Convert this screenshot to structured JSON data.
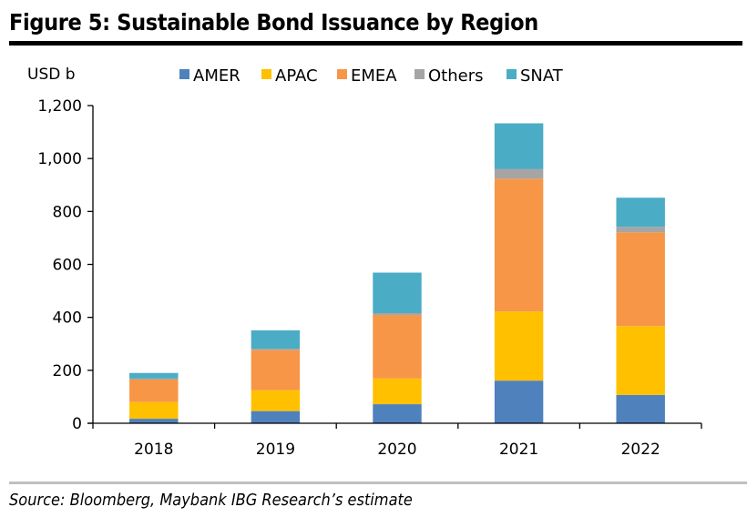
{
  "figure": {
    "title": "Figure 5: Sustainable Bond Issuance by Region",
    "source": "Source: Bloomberg, Maybank IBG Research’s estimate"
  },
  "chart_data": {
    "type": "bar",
    "stacked": true,
    "title": "Figure 5: Sustainable Bond Issuance by Region",
    "xlabel": "",
    "ylabel": "USD b",
    "ylim": [
      0,
      1200
    ],
    "yticks": [
      0,
      200,
      400,
      600,
      800,
      1000,
      1200
    ],
    "ytick_labels": [
      "0",
      "200",
      "400",
      "600",
      "800",
      "1,000",
      "1,200"
    ],
    "grid": false,
    "legend_position": "top",
    "categories": [
      "2018",
      "2019",
      "2020",
      "2021",
      "2022"
    ],
    "series": [
      {
        "name": "AMER",
        "color": "#4f81bd",
        "values": [
          17,
          46,
          72,
          161,
          107
        ]
      },
      {
        "name": "APAC",
        "color": "#ffc000",
        "values": [
          63,
          79,
          97,
          261,
          260
        ]
      },
      {
        "name": "EMEA",
        "color": "#f79646",
        "values": [
          85,
          151,
          240,
          502,
          354
        ]
      },
      {
        "name": "Others",
        "color": "#a5a5a5",
        "values": [
          4,
          6,
          7,
          37,
          21
        ]
      },
      {
        "name": "SNAT",
        "color": "#4bacc6",
        "values": [
          21,
          69,
          153,
          172,
          110
        ]
      }
    ]
  }
}
